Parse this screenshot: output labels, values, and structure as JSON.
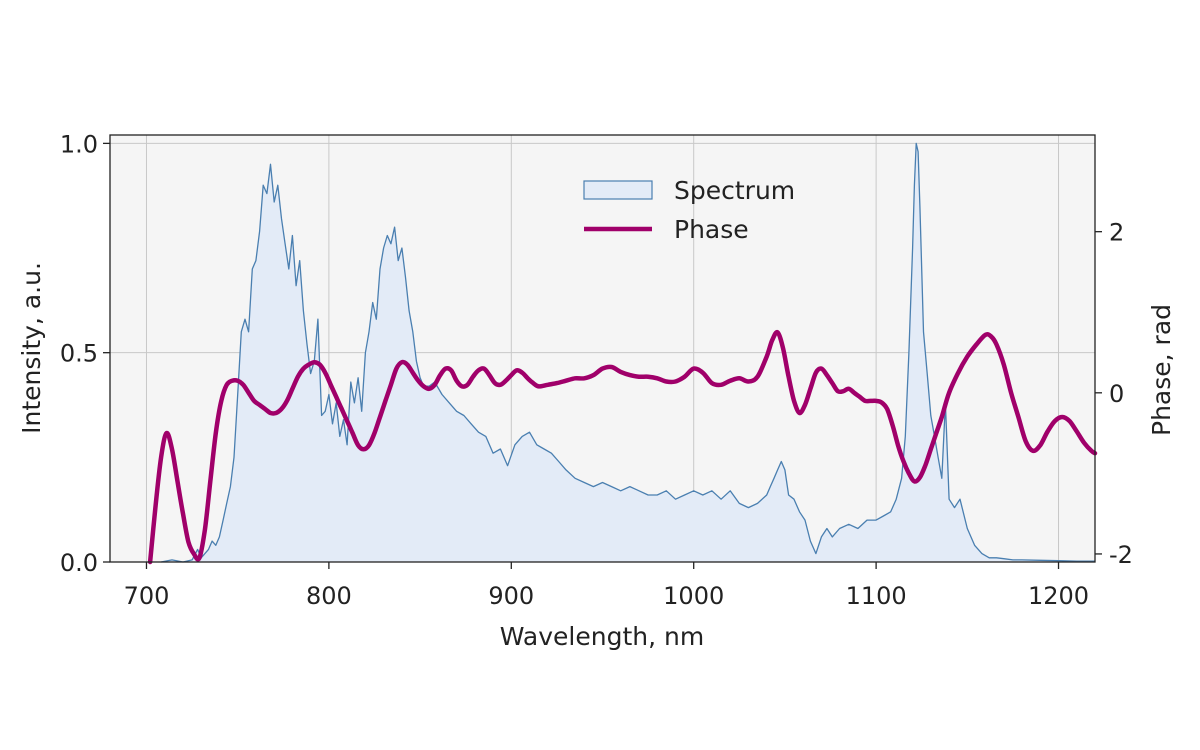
{
  "chart_data": {
    "type": "line",
    "title": "",
    "xlabel": "Wavelength, nm",
    "ylabel_left": "Intensity, a.u.",
    "ylabel_right": "Phase, rad",
    "xlim": [
      680,
      1220
    ],
    "ylim_left": [
      0,
      1.02
    ],
    "ylim_right": [
      -2.1,
      3.2
    ],
    "x_ticks": [
      700,
      800,
      900,
      1000,
      1100,
      1200
    ],
    "x_tick_labels": [
      "700",
      "800",
      "900",
      "1000",
      "1100",
      "1200"
    ],
    "y_left_ticks": [
      0.0,
      0.5,
      1.0
    ],
    "y_left_tick_labels": [
      "0.0",
      "0.5",
      "1.0"
    ],
    "y_right_ticks": [
      -2,
      0,
      2
    ],
    "y_right_tick_labels": [
      "-2",
      "0",
      "2"
    ],
    "grid": true,
    "legend_position": "top-center",
    "colors": {
      "spectrum_line": "#4a7fb0",
      "spectrum_fill": "#e3ebf7",
      "phase_line": "#a0006a",
      "plot_background": "#f5f5f5",
      "grid": "#c8c8c8"
    },
    "series": [
      {
        "name": "Spectrum",
        "axis": "left",
        "style": "filled-area",
        "x": [
          708,
          714,
          720,
          725,
          728,
          730,
          732,
          734,
          736,
          738,
          740,
          742,
          744,
          746,
          748,
          750,
          752,
          754,
          756,
          758,
          760,
          762,
          764,
          766,
          768,
          770,
          772,
          774,
          776,
          778,
          780,
          782,
          784,
          786,
          788,
          790,
          792,
          794,
          796,
          798,
          800,
          802,
          804,
          806,
          808,
          810,
          812,
          814,
          816,
          818,
          820,
          822,
          824,
          826,
          828,
          830,
          832,
          834,
          836,
          838,
          840,
          842,
          844,
          846,
          848,
          850,
          852,
          855,
          858,
          862,
          866,
          870,
          874,
          878,
          882,
          886,
          890,
          894,
          898,
          902,
          906,
          910,
          914,
          918,
          922,
          926,
          930,
          935,
          940,
          945,
          950,
          955,
          960,
          965,
          970,
          975,
          980,
          985,
          990,
          995,
          1000,
          1005,
          1010,
          1015,
          1020,
          1025,
          1030,
          1035,
          1040,
          1042,
          1044,
          1046,
          1048,
          1050,
          1052,
          1055,
          1058,
          1061,
          1064,
          1067,
          1070,
          1073,
          1076,
          1080,
          1085,
          1090,
          1095,
          1100,
          1104,
          1108,
          1111,
          1114,
          1116,
          1118,
          1120,
          1121,
          1122,
          1123,
          1124,
          1125,
          1126,
          1128,
          1130,
          1132,
          1134,
          1136,
          1138,
          1140,
          1143,
          1146,
          1150,
          1154,
          1158,
          1162,
          1166,
          1170,
          1175,
          1180,
          1190,
          1200,
          1210,
          1220
        ],
        "values": [
          0.0,
          0.005,
          0.0,
          0.005,
          0.03,
          0.01,
          0.02,
          0.03,
          0.05,
          0.04,
          0.06,
          0.1,
          0.14,
          0.18,
          0.25,
          0.4,
          0.55,
          0.58,
          0.55,
          0.7,
          0.72,
          0.79,
          0.9,
          0.88,
          0.95,
          0.86,
          0.9,
          0.82,
          0.76,
          0.7,
          0.78,
          0.66,
          0.72,
          0.6,
          0.52,
          0.45,
          0.48,
          0.58,
          0.35,
          0.36,
          0.4,
          0.33,
          0.38,
          0.3,
          0.34,
          0.28,
          0.43,
          0.38,
          0.44,
          0.36,
          0.5,
          0.55,
          0.62,
          0.58,
          0.7,
          0.75,
          0.78,
          0.76,
          0.8,
          0.72,
          0.75,
          0.68,
          0.6,
          0.55,
          0.48,
          0.44,
          0.42,
          0.42,
          0.43,
          0.4,
          0.38,
          0.36,
          0.35,
          0.33,
          0.31,
          0.3,
          0.26,
          0.27,
          0.23,
          0.28,
          0.3,
          0.31,
          0.28,
          0.27,
          0.26,
          0.24,
          0.22,
          0.2,
          0.19,
          0.18,
          0.19,
          0.18,
          0.17,
          0.18,
          0.17,
          0.16,
          0.16,
          0.17,
          0.15,
          0.16,
          0.17,
          0.16,
          0.17,
          0.15,
          0.17,
          0.14,
          0.13,
          0.14,
          0.16,
          0.18,
          0.2,
          0.22,
          0.24,
          0.22,
          0.16,
          0.15,
          0.12,
          0.1,
          0.05,
          0.02,
          0.06,
          0.08,
          0.06,
          0.08,
          0.09,
          0.08,
          0.1,
          0.1,
          0.11,
          0.12,
          0.15,
          0.2,
          0.3,
          0.5,
          0.75,
          0.9,
          1.0,
          0.98,
          0.85,
          0.7,
          0.55,
          0.45,
          0.35,
          0.3,
          0.25,
          0.2,
          0.38,
          0.15,
          0.13,
          0.15,
          0.08,
          0.04,
          0.02,
          0.01,
          0.01,
          0.008,
          0.005,
          0.005,
          0.004,
          0.003,
          0.002,
          0.002
        ]
      },
      {
        "name": "Phase",
        "axis": "right",
        "style": "line",
        "x": [
          702,
          705,
          708,
          711,
          714,
          717,
          720,
          723,
          726,
          729,
          732,
          735,
          738,
          741,
          744,
          747,
          750,
          753,
          756,
          759,
          762,
          765,
          768,
          771,
          774,
          777,
          780,
          783,
          786,
          789,
          792,
          795,
          798,
          801,
          804,
          807,
          810,
          813,
          816,
          819,
          822,
          825,
          828,
          831,
          834,
          837,
          840,
          843,
          846,
          849,
          852,
          855,
          858,
          861,
          864,
          867,
          870,
          873,
          876,
          879,
          882,
          885,
          888,
          891,
          894,
          897,
          900,
          903,
          906,
          909,
          912,
          915,
          920,
          925,
          930,
          935,
          940,
          945,
          950,
          955,
          960,
          965,
          970,
          975,
          980,
          985,
          990,
          995,
          1000,
          1005,
          1010,
          1015,
          1020,
          1025,
          1030,
          1035,
          1040,
          1043,
          1046,
          1049,
          1052,
          1055,
          1058,
          1061,
          1064,
          1067,
          1070,
          1073,
          1076,
          1079,
          1082,
          1085,
          1088,
          1091,
          1094,
          1097,
          1100,
          1103,
          1106,
          1109,
          1112,
          1115,
          1118,
          1121,
          1124,
          1127,
          1130,
          1133,
          1136,
          1140,
          1145,
          1150,
          1155,
          1160,
          1163,
          1166,
          1170,
          1174,
          1178,
          1182,
          1186,
          1190,
          1194,
          1198,
          1202,
          1206,
          1210,
          1214,
          1218,
          1220
        ],
        "values": [
          -2.1,
          -1.4,
          -0.8,
          -0.5,
          -0.7,
          -1.1,
          -1.5,
          -1.85,
          -2.0,
          -2.05,
          -1.7,
          -1.1,
          -0.5,
          -0.1,
          0.1,
          0.15,
          0.15,
          0.1,
          0.0,
          -0.1,
          -0.15,
          -0.2,
          -0.25,
          -0.25,
          -0.2,
          -0.1,
          0.05,
          0.2,
          0.3,
          0.35,
          0.38,
          0.35,
          0.25,
          0.1,
          -0.05,
          -0.2,
          -0.35,
          -0.5,
          -0.65,
          -0.7,
          -0.65,
          -0.5,
          -0.3,
          -0.1,
          0.1,
          0.3,
          0.38,
          0.35,
          0.25,
          0.15,
          0.08,
          0.05,
          0.1,
          0.22,
          0.3,
          0.28,
          0.15,
          0.08,
          0.1,
          0.2,
          0.28,
          0.3,
          0.22,
          0.12,
          0.1,
          0.15,
          0.22,
          0.28,
          0.25,
          0.18,
          0.12,
          0.08,
          0.1,
          0.12,
          0.15,
          0.18,
          0.18,
          0.22,
          0.3,
          0.32,
          0.26,
          0.22,
          0.2,
          0.2,
          0.18,
          0.14,
          0.14,
          0.2,
          0.3,
          0.25,
          0.12,
          0.1,
          0.15,
          0.18,
          0.14,
          0.2,
          0.45,
          0.65,
          0.75,
          0.55,
          0.2,
          -0.1,
          -0.25,
          -0.15,
          0.05,
          0.25,
          0.3,
          0.22,
          0.12,
          0.02,
          0.02,
          0.05,
          0.0,
          -0.05,
          -0.1,
          -0.1,
          -0.1,
          -0.12,
          -0.2,
          -0.4,
          -0.65,
          -0.85,
          -1.0,
          -1.1,
          -1.05,
          -0.9,
          -0.7,
          -0.5,
          -0.3,
          0.0,
          0.25,
          0.45,
          0.6,
          0.72,
          0.7,
          0.6,
          0.35,
          0.0,
          -0.3,
          -0.6,
          -0.72,
          -0.65,
          -0.48,
          -0.35,
          -0.3,
          -0.35,
          -0.48,
          -0.62,
          -0.72,
          -0.75
        ]
      }
    ]
  }
}
